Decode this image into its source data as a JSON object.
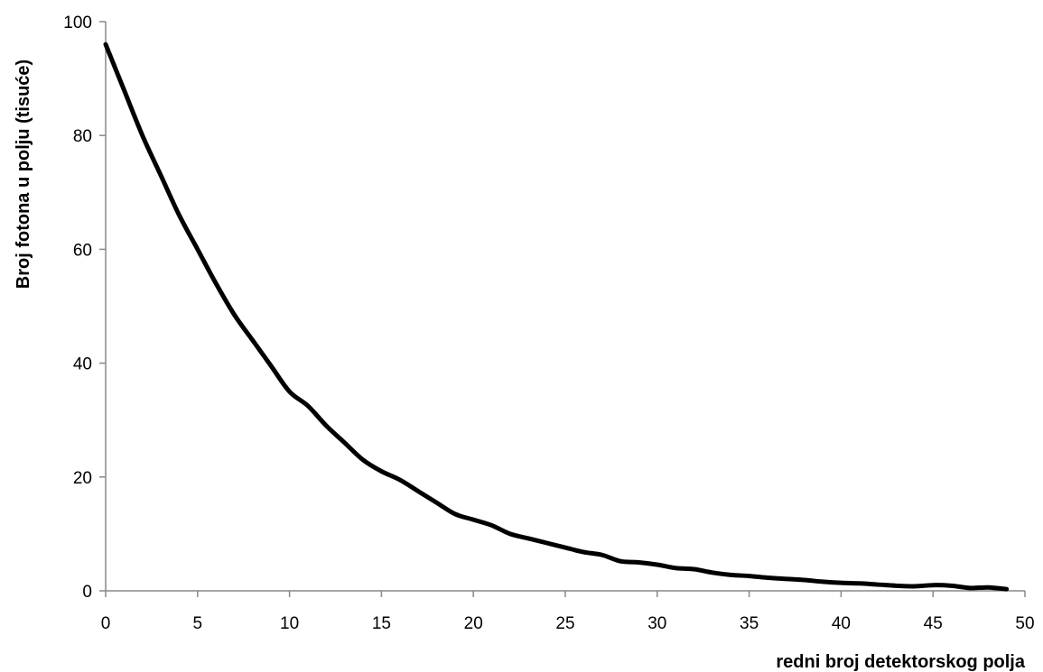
{
  "chart_data": {
    "type": "line",
    "title": "",
    "xlabel": "redni broj detektorskog polja",
    "ylabel": "Broj fotona u polju (tisuće)",
    "xlim": [
      0,
      50
    ],
    "ylim": [
      0,
      100
    ],
    "x_ticks": [
      0,
      5,
      10,
      15,
      20,
      25,
      30,
      35,
      40,
      45,
      50
    ],
    "y_ticks": [
      0,
      20,
      40,
      60,
      80,
      100
    ],
    "grid": false,
    "legend": "none",
    "line_color": "#000000",
    "series": [
      {
        "x": [
          0,
          1,
          2,
          3,
          4,
          5,
          6,
          7,
          8,
          9,
          10,
          11,
          12,
          13,
          14,
          15,
          16,
          17,
          18,
          19,
          20,
          21,
          22,
          23,
          24,
          25,
          26,
          27,
          28,
          29,
          30,
          31,
          32,
          33,
          34,
          35,
          36,
          37,
          38,
          39,
          40,
          41,
          42,
          43,
          44,
          45,
          46,
          47,
          48,
          49
        ],
        "values": [
          96,
          88,
          80,
          73,
          66,
          60,
          54,
          48.5,
          44,
          39.5,
          35,
          32.5,
          29,
          26,
          23,
          21,
          19.5,
          17.5,
          15.5,
          13.5,
          12.5,
          11.5,
          10,
          9.2,
          8.4,
          7.6,
          6.8,
          6.3,
          5.2,
          5,
          4.6,
          4,
          3.8,
          3.2,
          2.8,
          2.6,
          2.3,
          2.1,
          1.9,
          1.6,
          1.4,
          1.3,
          1.1,
          0.9,
          0.8,
          1,
          0.9,
          0.5,
          0.6,
          0.3
        ]
      }
    ]
  }
}
